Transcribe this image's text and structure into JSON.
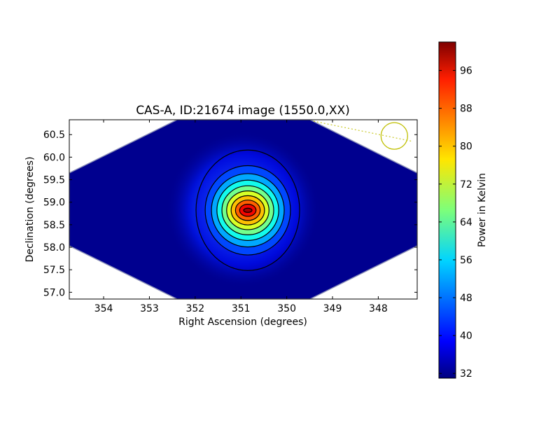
{
  "chart_data": {
    "type": "heatmap",
    "title": "CAS-A, ID:21674 image (1550.0,XX)",
    "xlabel": "Right Ascension (degrees)",
    "ylabel": "Declination (degrees)",
    "xlim": [
      354.75,
      347.15
    ],
    "ylim": [
      56.85,
      60.83
    ],
    "x_ticks": [
      "354",
      "353",
      "352",
      "351",
      "350",
      "349",
      "348"
    ],
    "x_tick_values": [
      354,
      353,
      352,
      351,
      350,
      349,
      348
    ],
    "y_ticks": [
      "57.0",
      "57.5",
      "58.0",
      "58.5",
      "59.0",
      "59.5",
      "60.0",
      "60.5"
    ],
    "y_tick_values": [
      57.0,
      57.5,
      58.0,
      58.5,
      59.0,
      59.5,
      60.0,
      60.5
    ],
    "colorbar": {
      "label": "Power in Kelvin",
      "range": [
        31,
        102
      ],
      "ticks": [
        "32",
        "40",
        "48",
        "56",
        "64",
        "72",
        "80",
        "88",
        "96"
      ],
      "tick_values": [
        32,
        40,
        48,
        56,
        64,
        72,
        80,
        88,
        96
      ],
      "colormap": "jet"
    },
    "source": {
      "name": "CAS-A",
      "ra": 350.85,
      "dec": 58.82,
      "peak_kelvin": 101,
      "background_kelvin": 32
    },
    "contour_levels": [
      38,
      45,
      52,
      59,
      66,
      73,
      80,
      87,
      94,
      100
    ],
    "beam_marker": {
      "ra": 347.65,
      "dec": 60.47,
      "color": "#bfbf00"
    }
  }
}
